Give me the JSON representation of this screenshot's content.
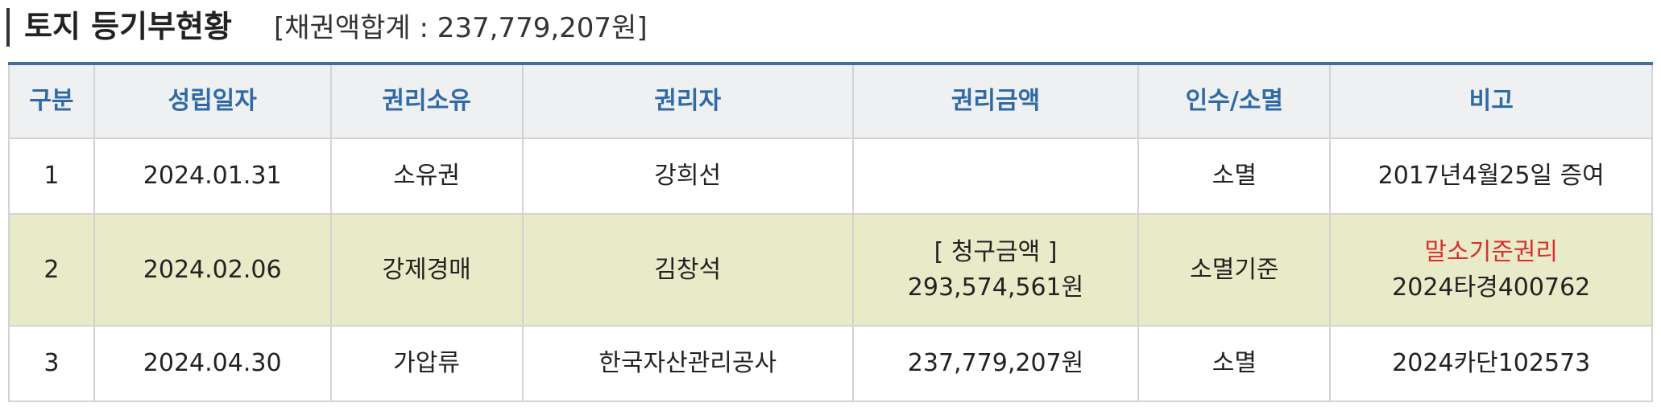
{
  "title": {
    "main": "토지 등기부현황",
    "sub": "[채권액합계 : 237,779,207원]"
  },
  "table": {
    "headers": [
      "구분",
      "성립일자",
      "권리소유",
      "권리자",
      "권리금액",
      "인수/소멸",
      "비고"
    ],
    "rows": [
      {
        "no": "1",
        "date": "2024.01.31",
        "right_type": "소유권",
        "holder": "강희선",
        "amount_line1": "",
        "amount_line2": "",
        "status": "소멸",
        "note_line1": "2017년4월25일 증여",
        "note_line2": ""
      },
      {
        "no": "2",
        "date": "2024.02.06",
        "right_type": "강제경매",
        "holder": "김창석",
        "amount_line1": "[ 청구금액 ]",
        "amount_line2": "293,574,561원",
        "status": "소멸기준",
        "note_line1": "말소기준권리",
        "note_line2": "2024타경400762"
      },
      {
        "no": "3",
        "date": "2024.04.30",
        "right_type": "가압류",
        "holder": "한국자산관리공사",
        "amount_line1": "237,779,207원",
        "amount_line2": "",
        "status": "소멸",
        "note_line1": "2024카단102573",
        "note_line2": ""
      }
    ]
  },
  "colors": {
    "header_text": "#2f6aa6",
    "header_bg": "#eef0f1",
    "highlight_row_bg": "#e9eac8",
    "emphasis_text": "#d7312c",
    "top_border": "#3f6fa3"
  }
}
